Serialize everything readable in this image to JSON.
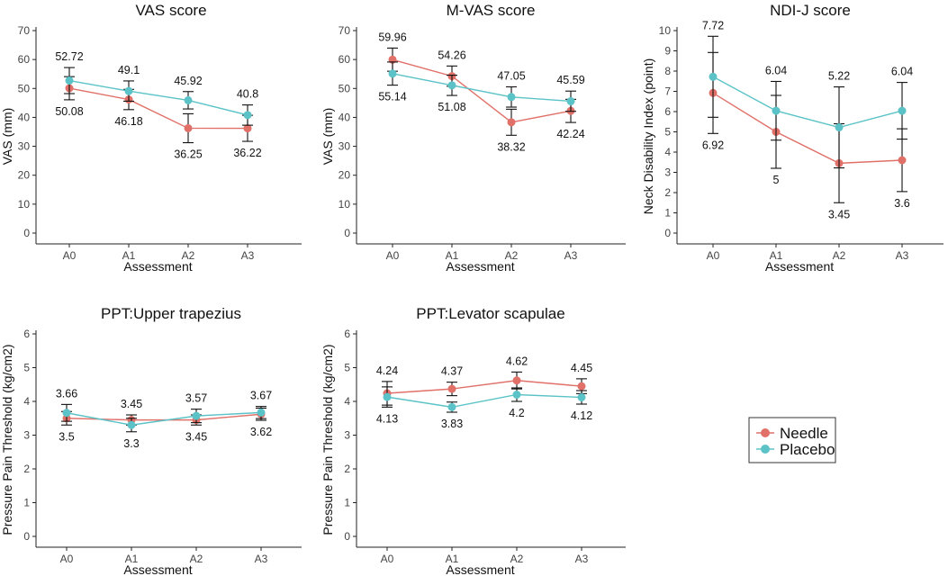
{
  "legend": {
    "items": [
      {
        "name": "Needle",
        "color": "#e07068"
      },
      {
        "name": "Placebo",
        "color": "#5bc3c7"
      }
    ]
  },
  "chart_data": [
    {
      "type": "line",
      "title": "VAS score",
      "xlabel": "Assessment",
      "ylabel": "VAS (mm)",
      "categories": [
        "A0",
        "A1",
        "A2",
        "A3"
      ],
      "ylim": [
        0,
        70
      ],
      "yticks": [
        0,
        10,
        20,
        30,
        40,
        50,
        60,
        70
      ],
      "series": [
        {
          "name": "Needle",
          "values": [
            50.08,
            46.18,
            36.25,
            36.22
          ],
          "error": [
            4.0,
            3.5,
            5.0,
            4.5
          ],
          "labels": [
            "50.08",
            "46.18",
            "36.25",
            "36.22"
          ]
        },
        {
          "name": "Placebo",
          "values": [
            52.72,
            49.1,
            45.92,
            40.8
          ],
          "error": [
            4.5,
            3.5,
            3.0,
            3.5
          ],
          "labels": [
            "52.72",
            "49.1",
            "45.92",
            "40.8"
          ]
        }
      ]
    },
    {
      "type": "line",
      "title": "M-VAS score",
      "xlabel": "Assessment",
      "ylabel": "VAS (mm)",
      "categories": [
        "A0",
        "A1",
        "A2",
        "A3"
      ],
      "ylim": [
        0,
        70
      ],
      "yticks": [
        0,
        10,
        20,
        30,
        40,
        50,
        60,
        70
      ],
      "series": [
        {
          "name": "Needle",
          "values": [
            59.96,
            54.26,
            38.32,
            42.24
          ],
          "error": [
            4.0,
            3.5,
            4.5,
            4.0
          ],
          "labels": [
            "59.96",
            "54.26",
            "38.32",
            "42.24"
          ]
        },
        {
          "name": "Placebo",
          "values": [
            55.14,
            51.08,
            47.05,
            45.59
          ],
          "error": [
            4.0,
            3.5,
            3.5,
            3.5
          ],
          "labels": [
            "55.14",
            "51.08",
            "47.05",
            "45.59"
          ]
        }
      ]
    },
    {
      "type": "line",
      "title": "NDI-J score",
      "xlabel": "Assessment",
      "ylabel": "Neck Disability Index (point)",
      "categories": [
        "A0",
        "A1",
        "A2",
        "A3"
      ],
      "ylim": [
        0,
        10
      ],
      "yticks": [
        0,
        1,
        2,
        3,
        4,
        5,
        6,
        7,
        8,
        9,
        10
      ],
      "series": [
        {
          "name": "Needle",
          "values": [
            6.92,
            5.0,
            3.45,
            3.6
          ],
          "error": [
            2.0,
            1.8,
            1.95,
            1.55
          ],
          "labels": [
            "6.92",
            "5",
            "3.45",
            "3.6"
          ]
        },
        {
          "name": "Placebo",
          "values": [
            7.72,
            6.04,
            5.22,
            6.04
          ],
          "error": [
            2.0,
            1.45,
            2.0,
            1.4
          ],
          "labels": [
            "7.72",
            "6.04",
            "5.22",
            "6.04"
          ]
        }
      ]
    },
    {
      "type": "line",
      "title": "PPT:Upper trapezius",
      "xlabel": "Assessment",
      "ylabel": "Pressure Pain Threshold (kg/cm2)",
      "categories": [
        "A0",
        "A1",
        "A2",
        "A3"
      ],
      "ylim": [
        0,
        6
      ],
      "yticks": [
        0,
        1,
        2,
        3,
        4,
        5,
        6
      ],
      "series": [
        {
          "name": "Needle",
          "values": [
            3.5,
            3.45,
            3.45,
            3.62
          ],
          "error": [
            0.2,
            0.15,
            0.15,
            0.18
          ],
          "labels": [
            "3.5",
            "3.45",
            "3.45",
            "3.62"
          ]
        },
        {
          "name": "Placebo",
          "values": [
            3.66,
            3.3,
            3.57,
            3.67
          ],
          "error": [
            0.25,
            0.2,
            0.2,
            0.18
          ],
          "labels": [
            "3.66",
            "3.3",
            "3.57",
            "3.67"
          ]
        }
      ]
    },
    {
      "type": "line",
      "title": "PPT:Levator scapulae",
      "xlabel": "Assessment",
      "ylabel": "Pressure Pain Threshold (kg/cm2)",
      "categories": [
        "A0",
        "A1",
        "A2",
        "A3"
      ],
      "ylim": [
        0,
        6
      ],
      "yticks": [
        0,
        1,
        2,
        3,
        4,
        5,
        6
      ],
      "series": [
        {
          "name": "Needle",
          "values": [
            4.24,
            4.37,
            4.62,
            4.45
          ],
          "error": [
            0.35,
            0.2,
            0.25,
            0.22
          ],
          "labels": [
            "4.24",
            "4.37",
            "4.62",
            "4.45"
          ]
        },
        {
          "name": "Placebo",
          "values": [
            4.13,
            3.83,
            4.2,
            4.12
          ],
          "error": [
            0.3,
            0.15,
            0.2,
            0.2
          ],
          "labels": [
            "4.13",
            "3.83",
            "4.2",
            "4.12"
          ]
        }
      ]
    }
  ]
}
